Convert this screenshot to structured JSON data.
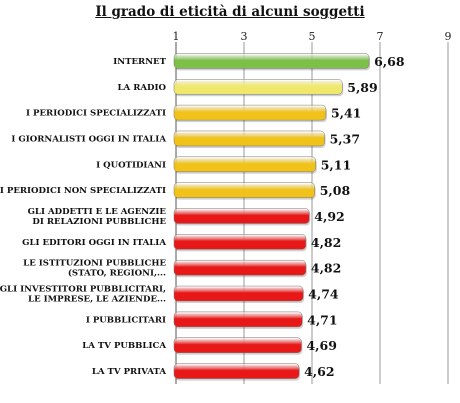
{
  "chart_data": {
    "type": "bar",
    "orientation": "horizontal",
    "title": "Il grado di eticità di alcuni soggetti",
    "xlim": [
      1,
      9
    ],
    "x_ticks": [
      "1",
      "3",
      "5",
      "7",
      "9"
    ],
    "grid": true,
    "categories": [
      "INTERNET",
      "LA RADIO",
      "I PERIODICI SPECIALIZZATI",
      "I GIORNALISTI OGGI IN ITALIA",
      "I QUOTIDIANI",
      "I PERIODICI NON SPECIALIZZATI",
      "GLI ADDETTI E LE AGENZIE DI RELAZIONI PUBBLICHE",
      "GLI EDITORI OGGI IN ITALIA",
      "LE ISTITUZIONI PUBBLICHE (STATO, REGIONI,...",
      "GLI INVESTITORI PUBBLICITARI, LE IMPRESE, LE AZIENDE...",
      "I PUBBLICITARI",
      "LA TV PUBBLICA",
      "LA TV PRIVATA"
    ],
    "category_label_lines": [
      [
        "INTERNET"
      ],
      [
        "LA RADIO"
      ],
      [
        "I PERIODICI SPECIALIZZATI"
      ],
      [
        "I GIORNALISTI OGGI IN ITALIA"
      ],
      [
        "I QUOTIDIANI"
      ],
      [
        "I PERIODICI NON SPECIALIZZATI"
      ],
      [
        "GLI ADDETTI E LE AGENZIE",
        "DI RELAZIONI PUBBLICHE"
      ],
      [
        "GLI EDITORI OGGI IN ITALIA"
      ],
      [
        "LE ISTITUZIONI PUBBLICHE",
        "(STATO, REGIONI,..."
      ],
      [
        "GLI INVESTITORI PUBBLICITARI,",
        "LE IMPRESE, LE AZIENDE..."
      ],
      [
        "I PUBBLICITARI"
      ],
      [
        "LA TV PUBBLICA"
      ],
      [
        "LA TV PRIVATA"
      ]
    ],
    "values": [
      6.68,
      5.89,
      5.41,
      5.37,
      5.11,
      5.08,
      4.92,
      4.82,
      4.82,
      4.74,
      4.71,
      4.69,
      4.62
    ],
    "value_labels": [
      "6,68",
      "5,89",
      "5,41",
      "5,37",
      "5,11",
      "5,08",
      "4,92",
      "4,82",
      "4,82",
      "4,74",
      "4,71",
      "4,69",
      "4,62"
    ],
    "bar_colors": [
      "#7cc04a",
      "#f0e86a",
      "#f0c21a",
      "#f0c21a",
      "#f0c21a",
      "#f0c21a",
      "#e81818",
      "#e81818",
      "#e81818",
      "#e81818",
      "#e81818",
      "#e81818",
      "#e81818"
    ]
  }
}
